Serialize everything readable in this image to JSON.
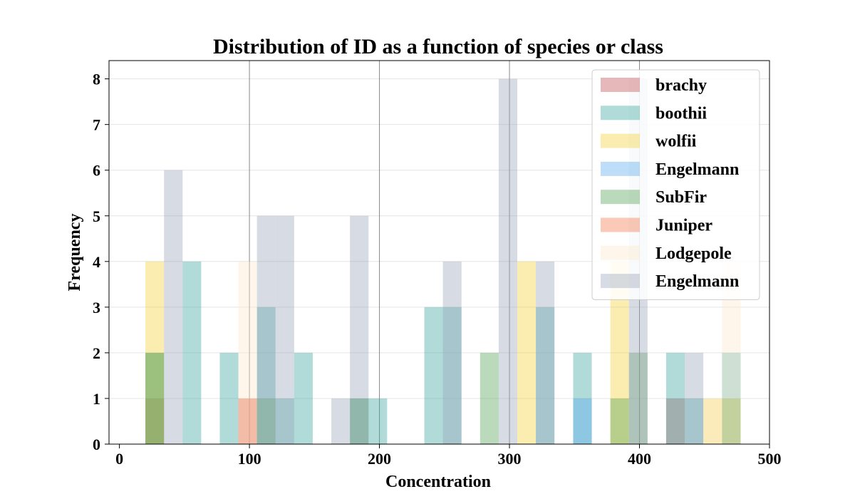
{
  "chart_data": {
    "type": "bar",
    "subtype": "overlaid-histogram",
    "title": "Distribution of ID as a function of species or class",
    "xlabel": "Concentration",
    "ylabel": "Frequency",
    "xlim": [
      -8,
      500
    ],
    "ylim": [
      0,
      8.4
    ],
    "xticks": [
      0,
      100,
      200,
      300,
      400,
      500
    ],
    "yticks": [
      0,
      1,
      2,
      3,
      4,
      5,
      6,
      7,
      8
    ],
    "bin_width": 14.3,
    "bar_opacity": 0.4,
    "gridlines": "y-axis light gray; vertical dark lines at x=100, 200, 300, 400",
    "legend_position": "top-right",
    "series": [
      {
        "name": "brachy",
        "color": "#c44e52",
        "bars": [
          [
            20,
            1
          ],
          [
            91.5,
            1
          ],
          [
            420.5,
            1
          ]
        ]
      },
      {
        "name": "boothii",
        "color": "#3aa6a0",
        "bars": [
          [
            20,
            2
          ],
          [
            48.6,
            4
          ],
          [
            77.2,
            2
          ],
          [
            105.8,
            3
          ],
          [
            120.1,
            1
          ],
          [
            134.4,
            2
          ],
          [
            177.3,
            1
          ],
          [
            191.6,
            1
          ],
          [
            234.5,
            3
          ],
          [
            248.8,
            3
          ],
          [
            320.3,
            3
          ],
          [
            349,
            2
          ],
          [
            420.5,
            2
          ],
          [
            434.8,
            1
          ],
          [
            463.5,
            2
          ]
        ]
      },
      {
        "name": "wolfii",
        "color": "#f5d33a",
        "bars": [
          [
            20,
            4
          ],
          [
            306,
            4
          ],
          [
            377.6,
            4
          ],
          [
            449.1,
            1
          ],
          [
            463.5,
            1
          ]
        ]
      },
      {
        "name": "Engelmann",
        "color": "#5aa9ee",
        "bars": [
          [
            349,
            1
          ]
        ]
      },
      {
        "name": "SubFir",
        "color": "#55a055",
        "bars": [
          [
            20,
            2
          ],
          [
            105.8,
            1
          ],
          [
            177.3,
            1
          ],
          [
            277.4,
            2
          ],
          [
            377.6,
            1
          ],
          [
            391.9,
            2
          ],
          [
            463.5,
            1
          ]
        ]
      },
      {
        "name": "Juniper",
        "color": "#f2784b",
        "bars": [
          [
            91.5,
            1
          ]
        ]
      },
      {
        "name": "Lodgepole",
        "color": "#fde8cc",
        "bars": [
          [
            91.5,
            4
          ],
          [
            449.1,
            1
          ],
          [
            463.5,
            4
          ]
        ]
      },
      {
        "name": "Engelmann",
        "color": "#9aa5ba",
        "bars": [
          [
            34.3,
            6
          ],
          [
            105.8,
            5
          ],
          [
            120.1,
            5
          ],
          [
            163,
            1
          ],
          [
            177.3,
            5
          ],
          [
            248.8,
            4
          ],
          [
            291.7,
            8
          ],
          [
            320.3,
            4
          ],
          [
            391.9,
            8
          ],
          [
            434.8,
            2
          ]
        ]
      }
    ]
  }
}
